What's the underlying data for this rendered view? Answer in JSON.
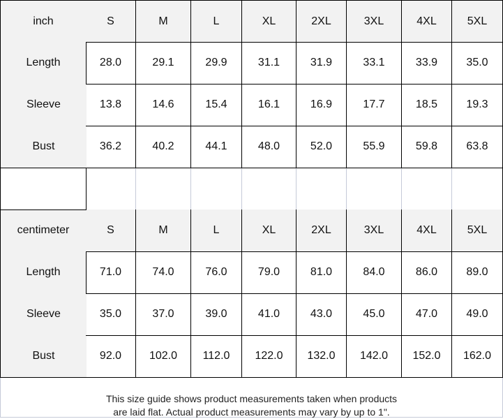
{
  "sizes": [
    "S",
    "M",
    "L",
    "XL",
    "2XL",
    "3XL",
    "4XL",
    "5XL"
  ],
  "tables": [
    {
      "unit": "inch",
      "rows": [
        {
          "label": "Length",
          "values": [
            "28.0",
            "29.1",
            "29.9",
            "31.1",
            "31.9",
            "33.1",
            "33.9",
            "35.0"
          ]
        },
        {
          "label": "Sleeve",
          "values": [
            "13.8",
            "14.6",
            "15.4",
            "16.1",
            "16.9",
            "17.7",
            "18.5",
            "19.3"
          ]
        },
        {
          "label": "Bust",
          "values": [
            "36.2",
            "40.2",
            "44.1",
            "48.0",
            "52.0",
            "55.9",
            "59.8",
            "63.8"
          ]
        }
      ]
    },
    {
      "unit": "centimeter",
      "rows": [
        {
          "label": "Length",
          "values": [
            "71.0",
            "74.0",
            "76.0",
            "79.0",
            "81.0",
            "84.0",
            "86.0",
            "89.0"
          ]
        },
        {
          "label": "Sleeve",
          "values": [
            "35.0",
            "37.0",
            "39.0",
            "41.0",
            "43.0",
            "45.0",
            "47.0",
            "49.0"
          ]
        },
        {
          "label": "Bust",
          "values": [
            "92.0",
            "102.0",
            "112.0",
            "122.0",
            "132.0",
            "142.0",
            "152.0",
            "162.0"
          ]
        }
      ]
    }
  ],
  "footer": {
    "line1": "This size guide shows product measurements taken when products",
    "line2": "are laid flat. Actual product measurements may vary by up to 1\"."
  }
}
